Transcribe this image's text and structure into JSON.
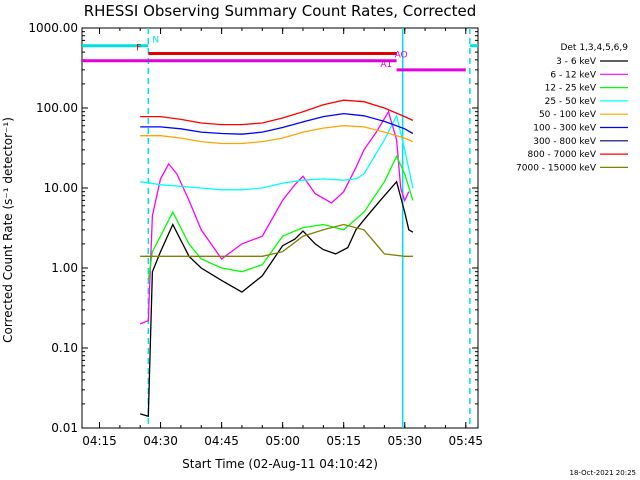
{
  "chart_data": {
    "type": "line",
    "title": "RHESSI Observing Summary Count Rates, Corrected",
    "xlabel": "Start Time (02-Aug-11 04:10:42)",
    "ylabel": "Corrected Count Rate (s⁻¹ detector⁻¹)",
    "y_scale": "log",
    "ylim": [
      0.01,
      1000
    ],
    "xlim": [
      "04:10:42",
      "05:48:00"
    ],
    "y_ticks": [
      "1000.00",
      "100.00",
      "10.00",
      "1.00",
      "0.10",
      "0.01"
    ],
    "x_ticks": [
      "04:15",
      "04:30",
      "04:45",
      "05:00",
      "05:15",
      "05:30",
      "05:45"
    ],
    "grid": false,
    "legend": {
      "title": "Det 1,3,4,5,6,9",
      "placement": "right"
    },
    "series": [
      {
        "name": "3 - 6 keV",
        "color": "#000000",
        "x": [
          "04:25",
          "04:27",
          "04:28",
          "04:30",
          "04:33",
          "04:37",
          "04:40",
          "04:45",
          "04:50",
          "04:55",
          "05:00",
          "05:03",
          "05:05",
          "05:08",
          "05:10",
          "05:13",
          "05:16",
          "05:18",
          "05:20",
          "05:24",
          "05:28",
          "05:30",
          "05:31",
          "05:32"
        ],
        "values": [
          0.015,
          0.014,
          0.9,
          1.6,
          3.5,
          1.4,
          1.0,
          0.7,
          0.5,
          0.8,
          1.9,
          2.3,
          2.9,
          2.0,
          1.7,
          1.5,
          1.8,
          3.0,
          4.0,
          7.0,
          12.0,
          5.0,
          3.0,
          2.8
        ]
      },
      {
        "name": "6 - 12 keV",
        "color": "#ff00ff",
        "x": [
          "04:25",
          "04:27",
          "04:28",
          "04:30",
          "04:32",
          "04:34",
          "04:37",
          "04:40",
          "04:45",
          "04:50",
          "04:55",
          "05:00",
          "05:03",
          "05:05",
          "05:08",
          "05:12",
          "05:15",
          "05:18",
          "05:20",
          "05:23",
          "05:26",
          "05:28",
          "05:29",
          "05:30",
          "05:31"
        ],
        "values": [
          0.2,
          0.22,
          4.5,
          13.0,
          20.0,
          15.0,
          7.0,
          3.0,
          1.3,
          2.0,
          2.5,
          7.0,
          11.0,
          14.0,
          8.5,
          6.5,
          9.0,
          18.0,
          30.0,
          50.0,
          90.0,
          40.0,
          10.0,
          7.0,
          9.0
        ]
      },
      {
        "name": "12 - 25 keV",
        "color": "#00ff00",
        "x": [
          "04:27",
          "04:28",
          "04:30",
          "04:33",
          "04:37",
          "04:40",
          "04:45",
          "04:50",
          "04:55",
          "05:00",
          "05:05",
          "05:10",
          "05:15",
          "05:20",
          "05:25",
          "05:28",
          "05:30",
          "05:32"
        ],
        "values": [
          0.7,
          1.6,
          2.5,
          5.0,
          2.0,
          1.3,
          1.0,
          0.9,
          1.1,
          2.5,
          3.2,
          3.5,
          3.0,
          5.0,
          12.0,
          25.0,
          15.0,
          7.0
        ]
      },
      {
        "name": "25 - 50 keV",
        "color": "#00ffff",
        "x": [
          "04:25",
          "04:30",
          "04:35",
          "04:40",
          "04:45",
          "04:50",
          "04:55",
          "05:00",
          "05:05",
          "05:10",
          "05:15",
          "05:18",
          "05:20",
          "05:25",
          "05:28",
          "05:30",
          "05:32"
        ],
        "values": [
          12.0,
          11.0,
          10.5,
          10.0,
          9.5,
          9.5,
          10.0,
          11.5,
          12.5,
          13.0,
          12.5,
          13.0,
          15.0,
          40.0,
          80.0,
          30.0,
          10.0
        ]
      },
      {
        "name": "50 - 100 keV",
        "color": "#ffa500",
        "x": [
          "04:25",
          "04:30",
          "04:35",
          "04:40",
          "04:45",
          "04:50",
          "04:55",
          "05:00",
          "05:05",
          "05:10",
          "05:15",
          "05:20",
          "05:25",
          "05:30",
          "05:32"
        ],
        "values": [
          45.0,
          45.0,
          42.0,
          38.0,
          36.0,
          36.0,
          38.0,
          42.0,
          50.0,
          56.0,
          60.0,
          58.0,
          50.0,
          42.0,
          38.0
        ]
      },
      {
        "name": "100 - 300 keV",
        "color": "#0000ff",
        "x": [
          "04:25",
          "04:30",
          "04:35",
          "04:40",
          "04:45",
          "04:50",
          "04:55",
          "05:00",
          "05:05",
          "05:10",
          "05:15",
          "05:20",
          "05:25",
          "05:30",
          "05:32"
        ],
        "values": [
          58.0,
          58.0,
          55.0,
          50.0,
          48.0,
          47.0,
          50.0,
          57.0,
          67.0,
          78.0,
          85.0,
          80.0,
          68.0,
          55.0,
          48.0
        ]
      },
      {
        "name": "300 - 800 keV",
        "color": "#000080",
        "x": [],
        "values": []
      },
      {
        "name": "800 - 7000 keV",
        "color": "#ff0000",
        "x": [
          "04:25",
          "04:30",
          "04:35",
          "04:40",
          "04:45",
          "04:50",
          "04:55",
          "05:00",
          "05:05",
          "05:10",
          "05:15",
          "05:20",
          "05:25",
          "05:30",
          "05:32"
        ],
        "values": [
          78.0,
          78.0,
          72.0,
          65.0,
          62.0,
          62.0,
          65.0,
          75.0,
          90.0,
          110.0,
          125.0,
          120.0,
          100.0,
          78.0,
          70.0
        ]
      },
      {
        "name": "7000 - 15000 keV",
        "color": "#808000",
        "x": [
          "04:25",
          "04:28",
          "04:35",
          "04:45",
          "04:55",
          "05:00",
          "05:05",
          "05:10",
          "05:15",
          "05:20",
          "05:25",
          "05:30",
          "05:32"
        ],
        "values": [
          1.4,
          1.4,
          1.4,
          1.4,
          1.4,
          1.6,
          2.5,
          3.0,
          3.5,
          3.0,
          1.5,
          1.4,
          1.4
        ]
      }
    ],
    "markers": [
      {
        "label": "N",
        "color": "#00e0e0",
        "level": 600,
        "segments": [
          [
            "04:10:42",
            "04:27"
          ],
          [
            "05:46",
            "05:48"
          ]
        ]
      },
      {
        "label": "F",
        "color": "#e00000",
        "level": 480,
        "segments": [
          [
            "04:27",
            "05:28"
          ]
        ]
      },
      {
        "label": "",
        "color": "#e000e0",
        "level": 390,
        "segments": [
          [
            "04:10:42",
            "05:28"
          ]
        ]
      },
      {
        "label": "AO",
        "color": "#e000e0",
        "level": 390,
        "segments": []
      },
      {
        "label": "A1",
        "color": "#e000e0",
        "level": 300,
        "segments": [
          [
            "05:28",
            "05:45"
          ]
        ]
      }
    ],
    "vlines": [
      {
        "time": "04:27",
        "color": "#00e0e0",
        "style": "dashed"
      },
      {
        "time": "05:29.5",
        "color": "#00e0e0",
        "style": "solid"
      },
      {
        "time": "05:46",
        "color": "#00e0e0",
        "style": "dashed"
      }
    ]
  },
  "footer": {
    "timestamp": "18-Oct-2021 20:25"
  }
}
